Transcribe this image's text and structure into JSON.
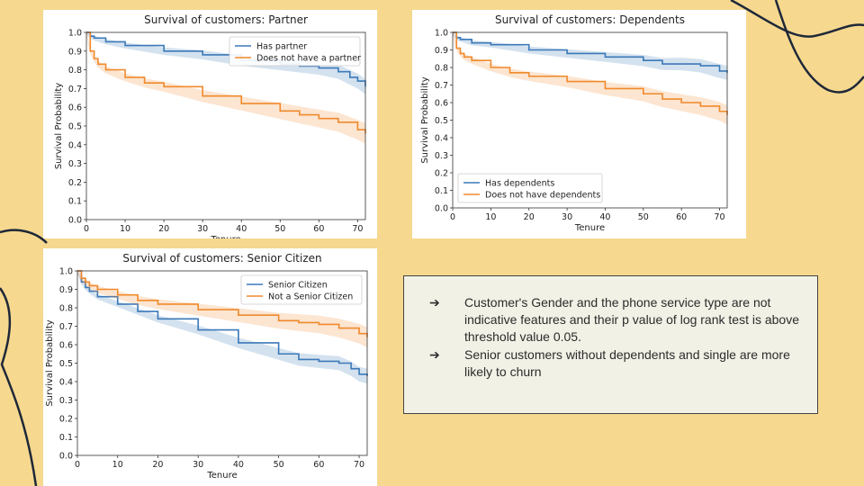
{
  "colors": {
    "background": "#f6d88f",
    "blue": "#3b79b8",
    "orange": "#f08a2c",
    "decor": "#1e2838"
  },
  "notes": [
    "Customer's Gender and the phone service type are not indicative features and their p value of log rank test is above threshold value 0.05.",
    "Senior customers without dependents and single are more likely to churn"
  ],
  "chart_data": [
    {
      "type": "line",
      "title": "Survival of customers: Partner",
      "xlabel": "Tenure",
      "ylabel": "Survival Probability",
      "xlim": [
        0,
        72
      ],
      "ylim": [
        0,
        1.0
      ],
      "xticks": [
        0,
        10,
        20,
        30,
        40,
        50,
        60,
        70
      ],
      "yticks": [
        0.0,
        0.1,
        0.2,
        0.3,
        0.4,
        0.5,
        0.6,
        0.7,
        0.8,
        0.9,
        1.0
      ],
      "legend_position": "top-right",
      "series": [
        {
          "name": "Has partner",
          "color": "#3b79b8",
          "x": [
            0,
            1,
            2,
            5,
            10,
            20,
            30,
            40,
            50,
            55,
            60,
            65,
            68,
            70,
            72
          ],
          "y": [
            1.0,
            0.98,
            0.97,
            0.95,
            0.93,
            0.9,
            0.88,
            0.85,
            0.83,
            0.82,
            0.81,
            0.79,
            0.76,
            0.74,
            0.71
          ]
        },
        {
          "name": "Does not have a partner",
          "color": "#f08a2c",
          "x": [
            0,
            1,
            2,
            3,
            5,
            10,
            15,
            20,
            30,
            40,
            50,
            55,
            60,
            65,
            70,
            72
          ],
          "y": [
            1.0,
            0.9,
            0.86,
            0.83,
            0.8,
            0.76,
            0.73,
            0.71,
            0.66,
            0.62,
            0.58,
            0.56,
            0.54,
            0.52,
            0.48,
            0.46
          ]
        }
      ]
    },
    {
      "type": "line",
      "title": "Survival of customers: Dependents",
      "xlabel": "Tenure",
      "ylabel": "Survival Probability",
      "xlim": [
        0,
        72
      ],
      "ylim": [
        0,
        1.0
      ],
      "xticks": [
        0,
        10,
        20,
        30,
        40,
        50,
        60,
        70
      ],
      "yticks": [
        0.0,
        0.1,
        0.2,
        0.3,
        0.4,
        0.5,
        0.6,
        0.7,
        0.8,
        0.9,
        1.0
      ],
      "legend_position": "bottom-left",
      "series": [
        {
          "name": "Has dependents",
          "color": "#3b79b8",
          "x": [
            0,
            1,
            2,
            5,
            10,
            20,
            30,
            40,
            50,
            55,
            60,
            65,
            70,
            72
          ],
          "y": [
            1.0,
            0.97,
            0.96,
            0.94,
            0.93,
            0.9,
            0.88,
            0.86,
            0.84,
            0.82,
            0.82,
            0.81,
            0.78,
            0.77
          ]
        },
        {
          "name": "Does not have dependents",
          "color": "#f08a2c",
          "x": [
            0,
            1,
            2,
            3,
            5,
            10,
            15,
            20,
            30,
            40,
            50,
            55,
            60,
            65,
            70,
            72
          ],
          "y": [
            1.0,
            0.91,
            0.88,
            0.86,
            0.84,
            0.8,
            0.77,
            0.75,
            0.72,
            0.68,
            0.65,
            0.62,
            0.6,
            0.58,
            0.55,
            0.53
          ]
        }
      ]
    },
    {
      "type": "line",
      "title": "Survival of customers: Senior Citizen",
      "xlabel": "Tenure",
      "ylabel": "Survival Probability",
      "xlim": [
        0,
        72
      ],
      "ylim": [
        0,
        1.0
      ],
      "xticks": [
        0,
        10,
        20,
        30,
        40,
        50,
        60,
        70
      ],
      "yticks": [
        0.0,
        0.1,
        0.2,
        0.3,
        0.4,
        0.5,
        0.6,
        0.7,
        0.8,
        0.9,
        1.0
      ],
      "legend_position": "top-right",
      "series": [
        {
          "name": "Senior Citizen",
          "color": "#3b79b8",
          "x": [
            0,
            1,
            2,
            3,
            5,
            10,
            15,
            20,
            30,
            40,
            50,
            55,
            60,
            65,
            68,
            70,
            72
          ],
          "y": [
            1.0,
            0.94,
            0.91,
            0.89,
            0.86,
            0.82,
            0.78,
            0.74,
            0.68,
            0.61,
            0.55,
            0.52,
            0.51,
            0.5,
            0.47,
            0.44,
            0.43
          ]
        },
        {
          "name": "Not a Senior Citizen",
          "color": "#f08a2c",
          "x": [
            0,
            1,
            2,
            3,
            5,
            10,
            15,
            20,
            30,
            40,
            50,
            55,
            60,
            65,
            70,
            72
          ],
          "y": [
            1.0,
            0.96,
            0.94,
            0.92,
            0.9,
            0.87,
            0.84,
            0.82,
            0.79,
            0.76,
            0.73,
            0.72,
            0.71,
            0.69,
            0.66,
            0.64
          ]
        }
      ]
    }
  ]
}
